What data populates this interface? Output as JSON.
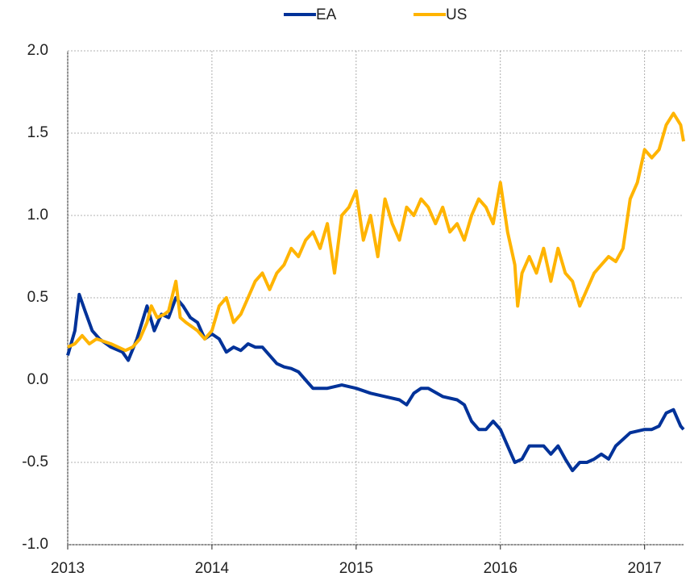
{
  "chart_data": {
    "type": "line",
    "xlim": [
      2013,
      2017.27
    ],
    "xticks": [
      2013,
      2014,
      2015,
      2016,
      2017
    ],
    "ylim": [
      -1,
      2
    ],
    "yticks": [
      {
        "value": -1,
        "label": "-1.0"
      },
      {
        "value": -0.5,
        "label": "-0.5"
      },
      {
        "value": 0,
        "label": "0.0"
      },
      0.5,
      {
        "value": 1,
        "label": "1.0"
      },
      1.5,
      {
        "value": 2,
        "label": "2.0"
      }
    ],
    "grid": true,
    "legend": "top",
    "series": [
      {
        "name": "EA",
        "color": "#003299",
        "x": [
          2013.0,
          2013.05,
          2013.08,
          2013.12,
          2013.17,
          2013.22,
          2013.3,
          2013.38,
          2013.42,
          2013.48,
          2013.55,
          2013.6,
          2013.65,
          2013.7,
          2013.75,
          2013.8,
          2013.85,
          2013.9,
          2013.95,
          2014.0,
          2014.05,
          2014.1,
          2014.15,
          2014.2,
          2014.25,
          2014.3,
          2014.35,
          2014.4,
          2014.45,
          2014.5,
          2014.55,
          2014.6,
          2014.65,
          2014.7,
          2014.8,
          2014.9,
          2015.0,
          2015.1,
          2015.2,
          2015.3,
          2015.35,
          2015.4,
          2015.45,
          2015.5,
          2015.6,
          2015.7,
          2015.75,
          2015.8,
          2015.85,
          2015.9,
          2015.95,
          2016.0,
          2016.05,
          2016.1,
          2016.15,
          2016.2,
          2016.3,
          2016.35,
          2016.4,
          2016.45,
          2016.5,
          2016.55,
          2016.6,
          2016.65,
          2016.7,
          2016.75,
          2016.8,
          2016.9,
          2017.0,
          2017.05,
          2017.1,
          2017.15,
          2017.2,
          2017.25,
          2017.27
        ],
        "values": [
          0.15,
          0.3,
          0.52,
          0.42,
          0.3,
          0.25,
          0.2,
          0.17,
          0.12,
          0.25,
          0.45,
          0.3,
          0.4,
          0.38,
          0.5,
          0.45,
          0.38,
          0.35,
          0.25,
          0.28,
          0.25,
          0.17,
          0.2,
          0.18,
          0.22,
          0.2,
          0.2,
          0.15,
          0.1,
          0.08,
          0.07,
          0.05,
          0.0,
          -0.05,
          -0.05,
          -0.03,
          -0.05,
          -0.08,
          -0.1,
          -0.12,
          -0.15,
          -0.08,
          -0.05,
          -0.05,
          -0.1,
          -0.12,
          -0.15,
          -0.25,
          -0.3,
          -0.3,
          -0.25,
          -0.3,
          -0.4,
          -0.5,
          -0.48,
          -0.4,
          -0.4,
          -0.45,
          -0.4,
          -0.48,
          -0.55,
          -0.5,
          -0.5,
          -0.48,
          -0.45,
          -0.48,
          -0.4,
          -0.32,
          -0.3,
          -0.3,
          -0.28,
          -0.2,
          -0.18,
          -0.28,
          -0.3
        ]
      },
      {
        "name": "US",
        "color": "#ffb400",
        "x": [
          2013.0,
          2013.05,
          2013.1,
          2013.15,
          2013.2,
          2013.3,
          2013.35,
          2013.4,
          2013.45,
          2013.5,
          2013.55,
          2013.58,
          2013.62,
          2013.67,
          2013.7,
          2013.75,
          2013.78,
          2013.82,
          2013.9,
          2013.95,
          2014.0,
          2014.05,
          2014.1,
          2014.15,
          2014.2,
          2014.25,
          2014.3,
          2014.35,
          2014.4,
          2014.45,
          2014.5,
          2014.55,
          2014.6,
          2014.65,
          2014.7,
          2014.75,
          2014.8,
          2014.85,
          2014.9,
          2014.95,
          2015.0,
          2015.05,
          2015.1,
          2015.15,
          2015.2,
          2015.25,
          2015.3,
          2015.35,
          2015.4,
          2015.45,
          2015.5,
          2015.55,
          2015.6,
          2015.65,
          2015.7,
          2015.75,
          2015.8,
          2015.85,
          2015.9,
          2015.95,
          2016.0,
          2016.05,
          2016.1,
          2016.12,
          2016.15,
          2016.2,
          2016.25,
          2016.3,
          2016.35,
          2016.4,
          2016.45,
          2016.5,
          2016.55,
          2016.6,
          2016.65,
          2016.7,
          2016.75,
          2016.8,
          2016.85,
          2016.9,
          2016.95,
          2017.0,
          2017.05,
          2017.1,
          2017.15,
          2017.2,
          2017.25,
          2017.27
        ],
        "values": [
          0.2,
          0.22,
          0.27,
          0.22,
          0.25,
          0.22,
          0.2,
          0.18,
          0.2,
          0.25,
          0.35,
          0.45,
          0.38,
          0.4,
          0.42,
          0.6,
          0.38,
          0.35,
          0.3,
          0.25,
          0.3,
          0.45,
          0.5,
          0.35,
          0.4,
          0.5,
          0.6,
          0.65,
          0.55,
          0.65,
          0.7,
          0.8,
          0.75,
          0.85,
          0.9,
          0.8,
          0.95,
          0.65,
          1.0,
          1.05,
          1.15,
          0.85,
          1.0,
          0.75,
          1.1,
          0.95,
          0.85,
          1.05,
          1.0,
          1.1,
          1.05,
          0.95,
          1.05,
          0.9,
          0.95,
          0.85,
          1.0,
          1.1,
          1.05,
          0.95,
          1.2,
          0.9,
          0.7,
          0.45,
          0.65,
          0.75,
          0.65,
          0.8,
          0.6,
          0.8,
          0.65,
          0.6,
          0.45,
          0.55,
          0.65,
          0.7,
          0.75,
          0.72,
          0.8,
          1.1,
          1.2,
          1.4,
          1.35,
          1.4,
          1.55,
          1.62,
          1.55,
          1.45
        ]
      }
    ]
  }
}
